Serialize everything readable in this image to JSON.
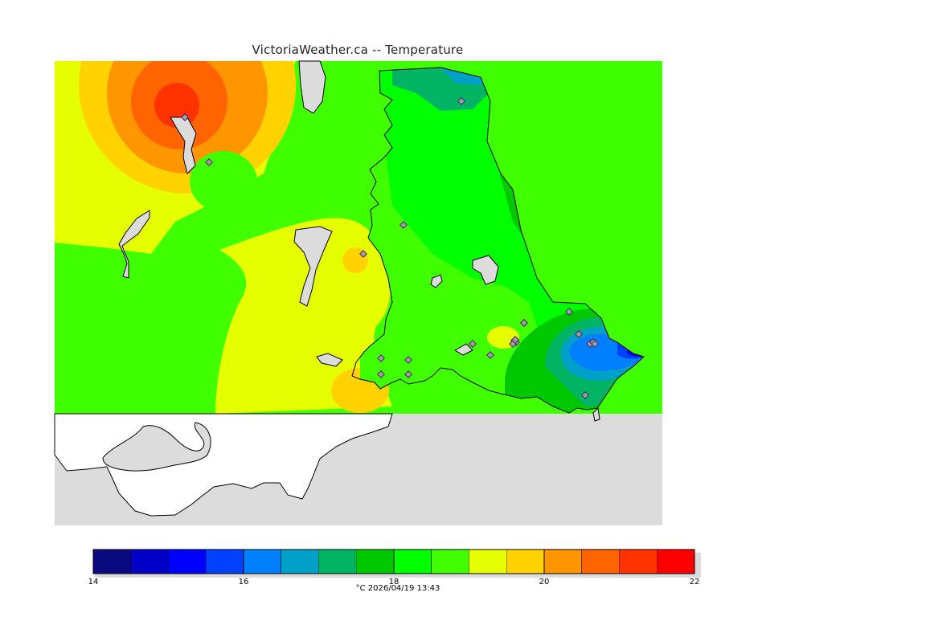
{
  "title": "VictoriaWeather.ca -- Temperature",
  "footer": "°C  2026/04/19 13:43",
  "colorbar": {
    "ticks": [
      "14",
      "16",
      "18",
      "20",
      "22"
    ],
    "min": 14,
    "max": 22,
    "colors": [
      "#0a0a80",
      "#0000c8",
      "#0000ff",
      "#0040ff",
      "#0080ff",
      "#00a0c8",
      "#00b464",
      "#00c800",
      "#00ff00",
      "#40ff00",
      "#e6ff00",
      "#ffd200",
      "#ff9600",
      "#ff6400",
      "#ff3200",
      "#ff0000"
    ]
  },
  "map": {
    "background": "#dcdcdc",
    "stations_count": 23
  }
}
